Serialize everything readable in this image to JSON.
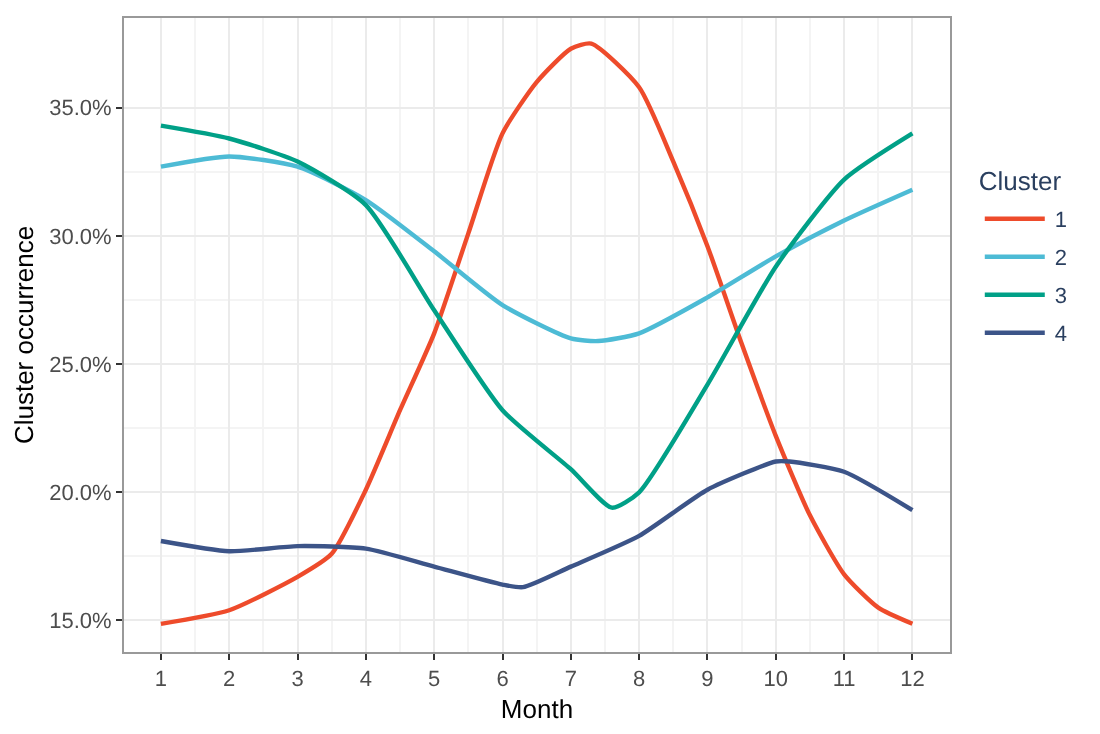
{
  "chart_data": {
    "type": "line",
    "xlabel": "Month",
    "ylabel": "Cluster occurrence",
    "legend_title": "Cluster",
    "legend": "right",
    "grid": true,
    "line_style": "solid",
    "marker": "none",
    "xlim": [
      0.46,
      12.55
    ],
    "xticks": [
      1,
      2,
      3,
      4,
      5,
      6,
      7,
      8,
      9,
      10,
      11,
      12
    ],
    "ylim": [
      13.77,
      38.5
    ],
    "yticks": [
      {
        "value": 15,
        "label": "15.0%"
      },
      {
        "value": 20,
        "label": "20.0%"
      },
      {
        "value": 25,
        "label": "25.0%"
      },
      {
        "value": 30,
        "label": "30.0%"
      },
      {
        "value": 35,
        "label": "35.0%"
      }
    ],
    "series": [
      {
        "name": "1",
        "color": "#ee4b2b",
        "x": [
          1,
          2,
          3,
          3.5,
          4,
          4.5,
          5,
          5.5,
          6,
          6.5,
          7,
          7.3,
          8,
          8.5,
          9,
          9.5,
          10,
          10.5,
          11,
          11.5,
          12
        ],
        "values": [
          14.87,
          15.4,
          16.7,
          17.6,
          20.1,
          23.2,
          26.2,
          30.1,
          34.0,
          36.0,
          37.3,
          37.5,
          35.8,
          32.9,
          29.6,
          25.8,
          22.2,
          19.1,
          16.8,
          15.5,
          14.87
        ]
      },
      {
        "name": "2",
        "color": "#4dbbd5",
        "x": [
          1,
          2,
          3,
          4,
          5,
          6,
          7,
          7.4,
          8,
          9,
          10,
          11,
          12
        ],
        "values": [
          32.7,
          33.1,
          32.7,
          31.4,
          29.4,
          27.3,
          26.0,
          25.9,
          26.2,
          27.6,
          29.2,
          30.6,
          31.8
        ]
      },
      {
        "name": "3",
        "color": "#00a087",
        "x": [
          1,
          2,
          3,
          4,
          5,
          6,
          7,
          7.6,
          8,
          9,
          10,
          11,
          12
        ],
        "values": [
          34.3,
          33.8,
          32.9,
          31.2,
          27.1,
          23.2,
          20.9,
          19.4,
          20.0,
          24.2,
          28.8,
          32.2,
          34.0
        ]
      },
      {
        "name": "4",
        "color": "#3c5488",
        "x": [
          1,
          2,
          3,
          4,
          5,
          6,
          6.3,
          7,
          8,
          9,
          10,
          10.2,
          11,
          12
        ],
        "values": [
          18.1,
          17.7,
          17.9,
          17.8,
          17.1,
          16.4,
          16.3,
          17.1,
          18.3,
          20.1,
          21.2,
          21.2,
          20.8,
          19.3
        ]
      }
    ]
  }
}
